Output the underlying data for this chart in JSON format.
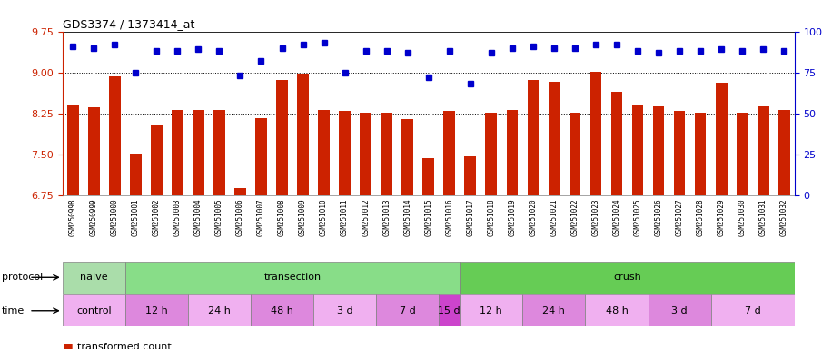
{
  "title": "GDS3374 / 1373414_at",
  "samples": [
    "GSM250998",
    "GSM250999",
    "GSM251000",
    "GSM251001",
    "GSM251002",
    "GSM251003",
    "GSM251004",
    "GSM251005",
    "GSM251006",
    "GSM251007",
    "GSM251008",
    "GSM251009",
    "GSM251010",
    "GSM251011",
    "GSM251012",
    "GSM251013",
    "GSM251014",
    "GSM251015",
    "GSM251016",
    "GSM251017",
    "GSM251018",
    "GSM251019",
    "GSM251020",
    "GSM251021",
    "GSM251022",
    "GSM251023",
    "GSM251024",
    "GSM251025",
    "GSM251026",
    "GSM251027",
    "GSM251028",
    "GSM251029",
    "GSM251030",
    "GSM251031",
    "GSM251032"
  ],
  "bar_values": [
    8.4,
    8.36,
    8.93,
    7.52,
    8.05,
    8.31,
    8.31,
    8.31,
    6.88,
    8.16,
    8.87,
    8.98,
    8.31,
    8.29,
    8.27,
    8.27,
    8.14,
    7.44,
    8.29,
    7.47,
    8.27,
    8.31,
    8.87,
    8.83,
    8.27,
    9.01,
    8.64,
    8.41,
    8.38,
    8.29,
    8.27,
    8.82,
    8.27,
    8.38,
    8.31
  ],
  "dot_values": [
    91,
    90,
    92,
    75,
    88,
    88,
    89,
    88,
    73,
    82,
    90,
    92,
    93,
    75,
    88,
    88,
    87,
    72,
    88,
    68,
    87,
    90,
    91,
    90,
    90,
    92,
    92,
    88,
    87,
    88,
    88,
    89,
    88,
    89,
    88
  ],
  "ylim_left": [
    6.75,
    9.75
  ],
  "ylim_right": [
    0,
    100
  ],
  "yticks_left": [
    6.75,
    7.5,
    8.25,
    9.0,
    9.75
  ],
  "yticks_right": [
    0,
    25,
    50,
    75,
    100
  ],
  "bar_color": "#cc2200",
  "dot_color": "#0000cc",
  "protocol_bands": [
    {
      "label": "naive",
      "start": 0,
      "end": 3,
      "color": "#aaddaa"
    },
    {
      "label": "transection",
      "start": 3,
      "end": 19,
      "color": "#88dd88"
    },
    {
      "label": "crush",
      "start": 19,
      "end": 35,
      "color": "#66cc55"
    }
  ],
  "time_bands": [
    {
      "label": "control",
      "start": 0,
      "end": 3,
      "color": "#f0b0f0"
    },
    {
      "label": "12 h",
      "start": 3,
      "end": 6,
      "color": "#dd88dd"
    },
    {
      "label": "24 h",
      "start": 6,
      "end": 9,
      "color": "#f0b0f0"
    },
    {
      "label": "48 h",
      "start": 9,
      "end": 12,
      "color": "#dd88dd"
    },
    {
      "label": "3 d",
      "start": 12,
      "end": 15,
      "color": "#f0b0f0"
    },
    {
      "label": "7 d",
      "start": 15,
      "end": 18,
      "color": "#dd88dd"
    },
    {
      "label": "15 d",
      "start": 18,
      "end": 19,
      "color": "#cc44cc"
    },
    {
      "label": "12 h",
      "start": 19,
      "end": 22,
      "color": "#f0b0f0"
    },
    {
      "label": "24 h",
      "start": 22,
      "end": 25,
      "color": "#dd88dd"
    },
    {
      "label": "48 h",
      "start": 25,
      "end": 28,
      "color": "#f0b0f0"
    },
    {
      "label": "3 d",
      "start": 28,
      "end": 31,
      "color": "#dd88dd"
    },
    {
      "label": "7 d",
      "start": 31,
      "end": 35,
      "color": "#f0b0f0"
    }
  ]
}
